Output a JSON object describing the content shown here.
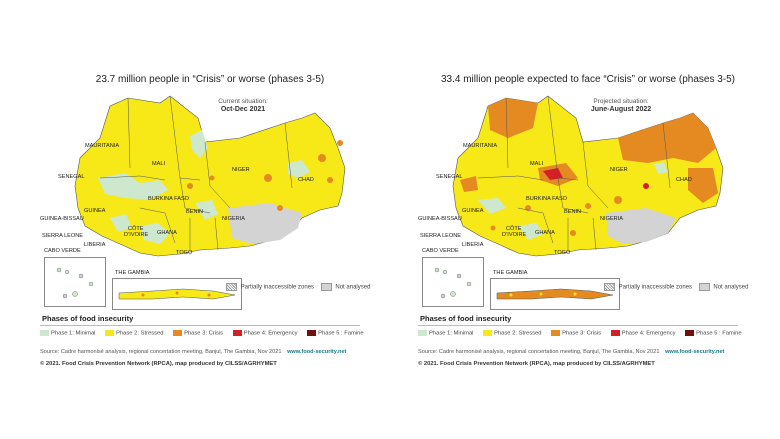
{
  "colors": {
    "phase1": "#cde8cc",
    "phase2": "#f7e818",
    "phase3": "#e58a21",
    "phase4": "#d32026",
    "phase5": "#6e1010",
    "not_analysed": "#d3d3d3",
    "web_link": "#1a7a8c"
  },
  "panels": [
    {
      "headline": "23.7 million people in “Crisis” or worse (phases 3-5)",
      "situation_label": "Current situation:",
      "situation_period": "Oct-Dec 2021",
      "scenario": "current"
    },
    {
      "headline": "33.4 million people expected to face “Crisis” or worse (phases 3-5)",
      "situation_label": "Projected situation:",
      "situation_period": "June-August 2022",
      "scenario": "projected"
    }
  ],
  "countries": {
    "mauritania": "MAURITANIA",
    "mali": "MALI",
    "niger": "NIGER",
    "chad": "CHAD",
    "senegal": "SENEGAL",
    "burkina_faso": "BURKINA FASO",
    "guinea_bissau": "GUINEA-BISSAU",
    "guinea": "GUINEA",
    "benin": "BENIN",
    "nigeria": "NIGERIA",
    "sierra_leone": "SIERRA LEONE",
    "liberia": "LIBERIA",
    "cote_divoire_1": "CÔTE",
    "cote_divoire_2": "D’IVOIRE",
    "ghana": "GHANA",
    "togo": "TOGO",
    "cabo_verde": "CABO VERDE",
    "the_gambia": "THE GAMBIA"
  },
  "legend": {
    "partially_inaccessible": "Partially inaccessible zones",
    "not_analysed": "Not analysed",
    "title": "Phases of food insecurity",
    "phases": [
      {
        "label": "Phase 1: Minimal",
        "color": "#cde8cc"
      },
      {
        "label": "Phase 2: Stressed",
        "color": "#f7e818"
      },
      {
        "label": "Phase 3: Crisis",
        "color": "#e58a21"
      },
      {
        "label": "Phase 4: Emergency",
        "color": "#d32026"
      },
      {
        "label": "Phase 5 : Famine",
        "color": "#6e1010"
      }
    ]
  },
  "source": {
    "text": "Source: Cadre harmonisé analysis, regional concertation meeting, Banjul, The Gambia, Nov 2021",
    "website": "www.food-security.net"
  },
  "copyright": "© 2021. Food Crisis Prevention Network (RPCA), map produced by CILSS/AGRHYMET"
}
